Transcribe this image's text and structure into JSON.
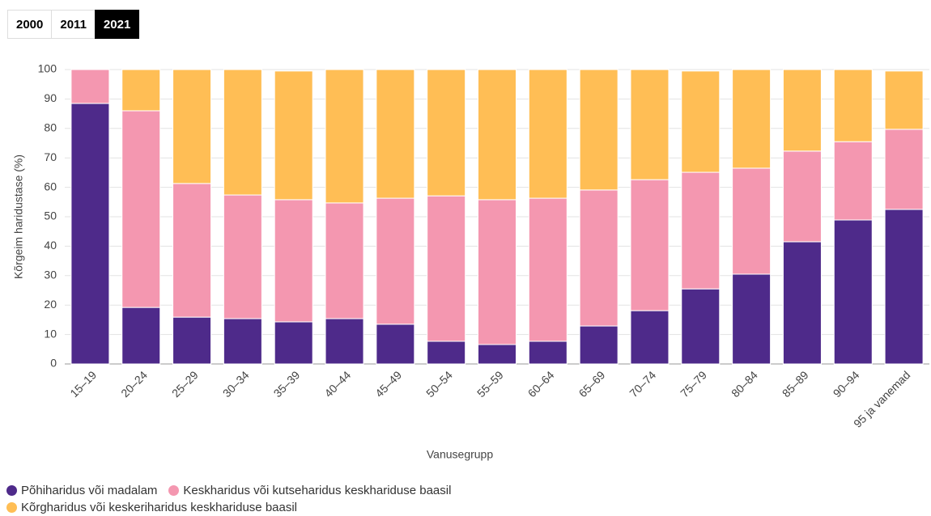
{
  "tabs": [
    "2000",
    "2011",
    "2021"
  ],
  "chart_data": {
    "type": "stacked_bar",
    "xlabel": "Vanusegrupp",
    "ylabel": "Kõrgeim haridustase (%)",
    "categories": [
      "15–19",
      "20–24",
      "25–29",
      "30–34",
      "35–39",
      "40–44",
      "45–49",
      "50–54",
      "55–59",
      "60–64",
      "65–69",
      "70–74",
      "75–79",
      "80–84",
      "85–89",
      "90–94",
      "95 ja vanemad"
    ],
    "series": [
      {
        "name": "Põhiharidus või madalam",
        "color": "#4e2a8a",
        "values": [
          88.5,
          19.2,
          15.9,
          15.4,
          14.3,
          15.4,
          13.5,
          7.7,
          6.6,
          7.7,
          12.9,
          18.1,
          25.5,
          30.5,
          41.5,
          48.9,
          52.5
        ]
      },
      {
        "name": "Keskharidus või kutseharidus keskhariduse baasil",
        "color": "#f497b0",
        "values": [
          11.5,
          66.8,
          45.4,
          42.0,
          41.5,
          39.3,
          42.8,
          49.4,
          49.2,
          48.6,
          46.2,
          44.5,
          39.6,
          36.0,
          30.8,
          26.6,
          27.2
        ]
      },
      {
        "name": "Kõrgharidus või keskeriharidus keskhariduse baasil",
        "color": "#ffbe55",
        "values": [
          0,
          14.0,
          38.7,
          42.6,
          43.7,
          45.3,
          43.7,
          42.9,
          44.2,
          43.7,
          40.9,
          37.4,
          34.4,
          33.5,
          27.7,
          24.5,
          19.8
        ]
      }
    ],
    "ylim": [
      0,
      100
    ],
    "yticks": [
      0,
      10,
      20,
      30,
      40,
      50,
      60,
      70,
      80,
      90,
      100
    ],
    "grid": true
  }
}
